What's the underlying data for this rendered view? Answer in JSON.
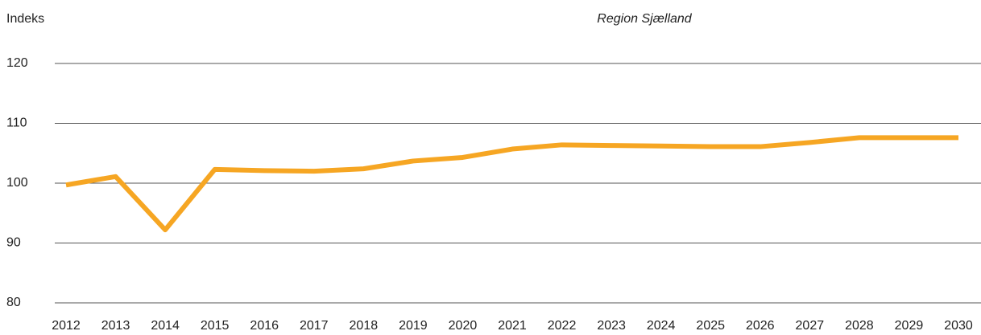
{
  "chart_data": {
    "type": "line",
    "title": "Region Sjælland",
    "y_label": "Indeks",
    "categories": [
      "2012",
      "2013",
      "2014",
      "2015",
      "2016",
      "2017",
      "2018",
      "2019",
      "2020",
      "2021",
      "2022",
      "2023",
      "2024",
      "2025",
      "2026",
      "2027",
      "2028",
      "2029",
      "2030"
    ],
    "series": [
      {
        "name": "Region Sjælland",
        "color": "#f6a623",
        "values": [
          99.7,
          101.1,
          92.2,
          102.3,
          102.1,
          102.0,
          102.4,
          103.7,
          104.3,
          105.7,
          106.4,
          106.3,
          106.2,
          106.1,
          106.1,
          106.8,
          107.6,
          107.6,
          107.6
        ]
      }
    ],
    "ylim": [
      80,
      120
    ],
    "yticks": [
      80,
      90,
      100,
      110,
      120
    ],
    "grid": true
  }
}
